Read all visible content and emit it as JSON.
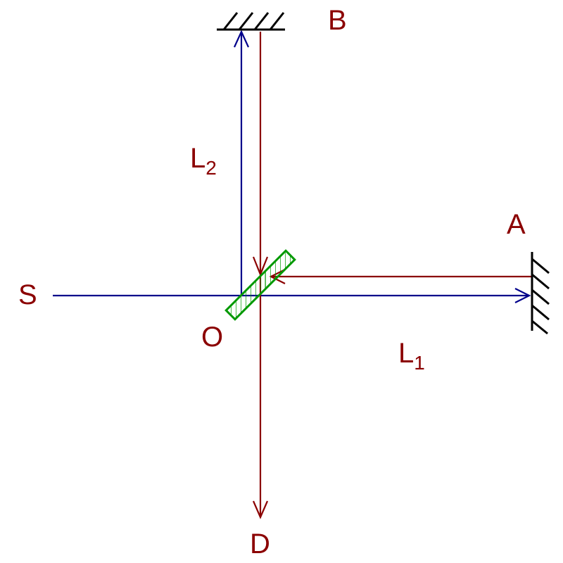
{
  "labels": {
    "source": "S",
    "origin": "O",
    "mirror_a": "A",
    "mirror_b": "B",
    "detector": "D",
    "arm1": {
      "main": "L",
      "sub": "1"
    },
    "arm2": {
      "main": "L",
      "sub": "2"
    }
  },
  "colors": {
    "outgoing_beam": "#00008b",
    "return_beam": "#8b0000",
    "label": "#8b0000",
    "mirror": "#000000",
    "beam_splitter": "#009900"
  }
}
